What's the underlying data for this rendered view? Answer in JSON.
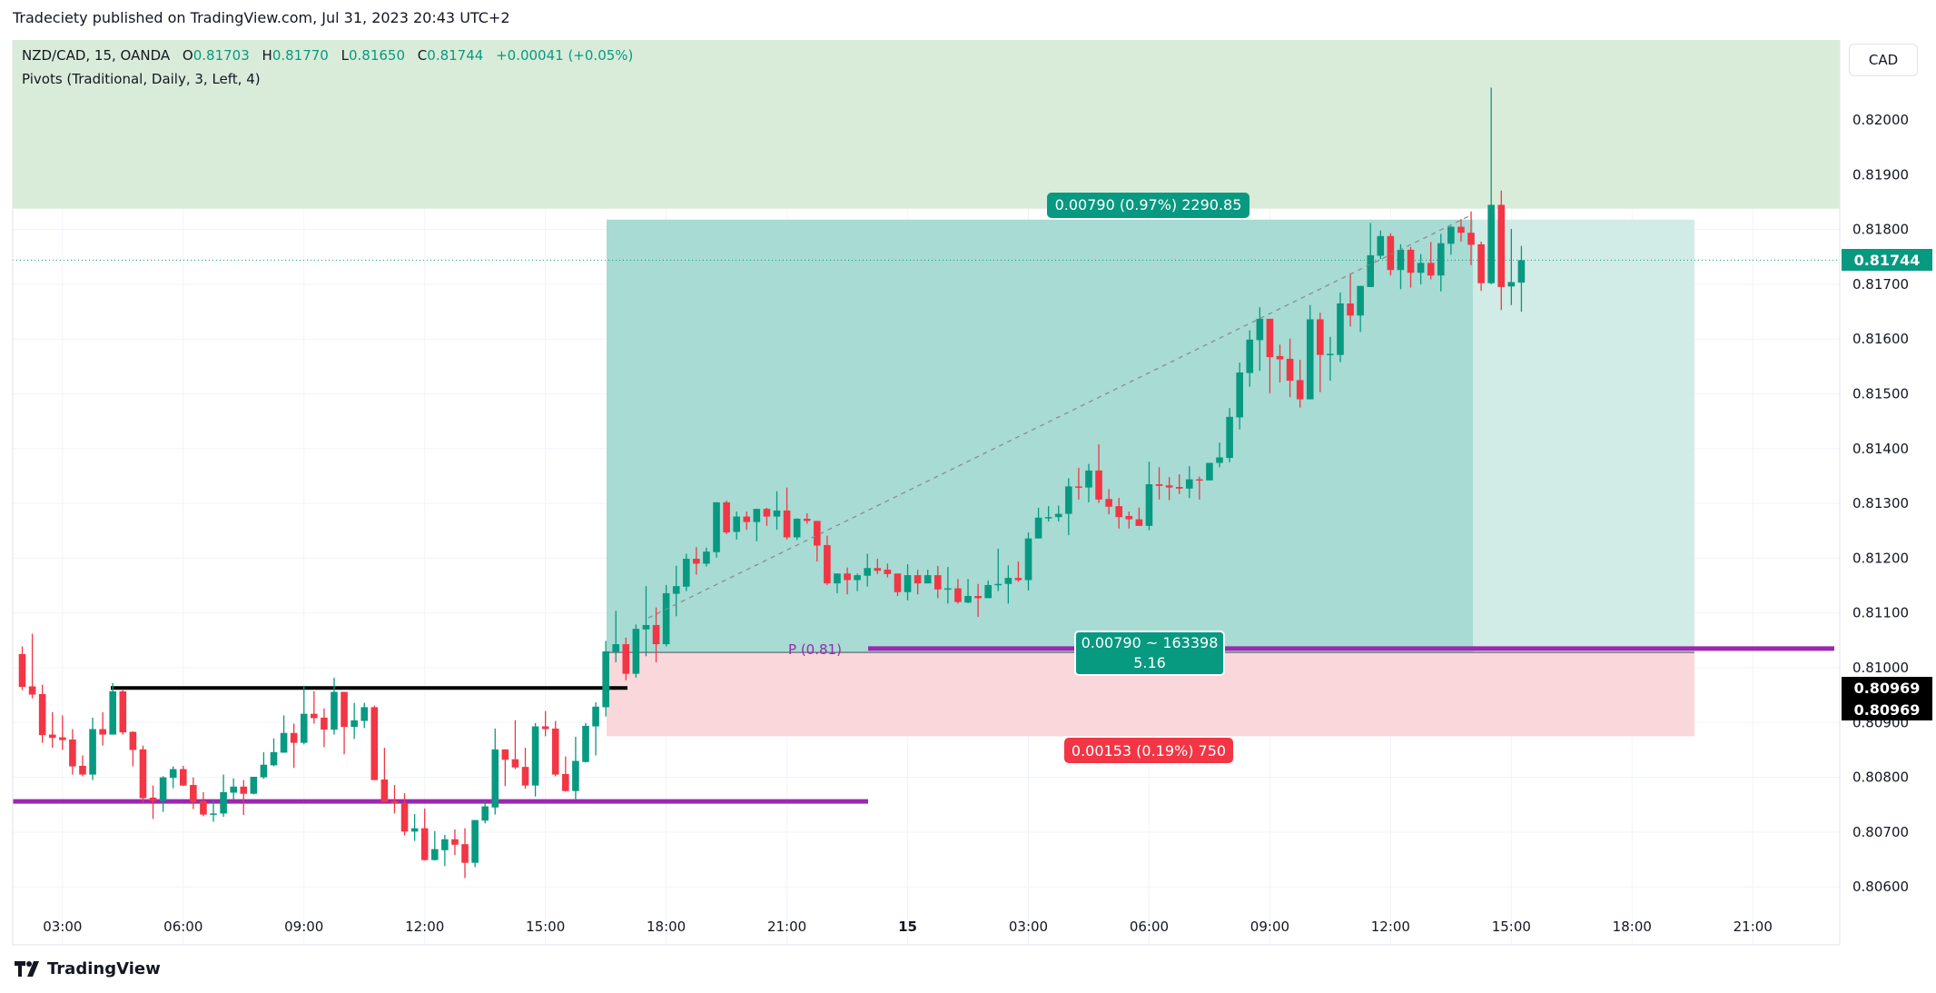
{
  "header": {
    "publisher_text": "Tradeciety published on TradingView.com, Jul 31, 2023 20:43 UTC+2"
  },
  "legend": {
    "symbol": "NZD/CAD, 15, OANDA",
    "open_label": "O",
    "open": "0.81703",
    "high_label": "H",
    "high": "0.81770",
    "low_label": "L",
    "low": "0.81650",
    "close_label": "C",
    "close": "0.81744",
    "change": "+0.00041 (+0.05%)",
    "indicator": "Pivots (Traditional, Daily, 3, Left, 4)"
  },
  "price_axis": {
    "currency": "CAD",
    "ticks": [
      "0.82000",
      "0.81900",
      "0.81800",
      "0.81700",
      "0.81600",
      "0.81500",
      "0.81400",
      "0.81300",
      "0.81200",
      "0.81100",
      "0.81000",
      "0.80900",
      "0.80800",
      "0.80700",
      "0.80600"
    ],
    "current_price_label": "0.81744",
    "crosshair_labels": [
      "0.80969",
      "0.80969"
    ]
  },
  "time_axis": {
    "ticks": [
      "03:00",
      "06:00",
      "09:00",
      "12:00",
      "15:00",
      "18:00",
      "21:00",
      "15",
      "03:00",
      "06:00",
      "09:00",
      "12:00",
      "15:00",
      "18:00",
      "21:00"
    ]
  },
  "position_tool": {
    "type": "long",
    "target_label": "0.00790 (0.97%) 2290.85",
    "center_label_line1": "0.00790 ~ 163398",
    "center_label_line2": "5.16",
    "stop_label": "0.00153 (0.19%) 750",
    "entry": 0.81028,
    "target": 0.81818,
    "stop": 0.80875
  },
  "pivots": {
    "label": "P (0.81)",
    "current_p": 0.81035,
    "previous_p": 0.80756
  },
  "levels": {
    "resistance_line": 0.80963,
    "supply_zone_bottom": 0.81838
  },
  "colors": {
    "up": "#089981",
    "down": "#f23645",
    "pivot": "#9c27b0",
    "zone": "#d9ecd9",
    "profit": "#a7dbd3",
    "profit_light": "#d1ebe6",
    "loss": "#fad7da"
  },
  "footer": {
    "brand": "TradingView"
  },
  "chart_data": {
    "type": "candlestick",
    "interval": "15",
    "first_bar_time": "02:00",
    "ohlc": [
      [
        0.81025,
        0.81039,
        0.80959,
        0.80965
      ],
      [
        0.80966,
        0.81062,
        0.80944,
        0.80951
      ],
      [
        0.80952,
        0.80969,
        0.80863,
        0.80877
      ],
      [
        0.80878,
        0.80919,
        0.80854,
        0.80872
      ],
      [
        0.80873,
        0.80913,
        0.8085,
        0.80868
      ],
      [
        0.80869,
        0.80888,
        0.80805,
        0.8082
      ],
      [
        0.80821,
        0.8084,
        0.80802,
        0.80805
      ],
      [
        0.80805,
        0.80909,
        0.80795,
        0.80888
      ],
      [
        0.80888,
        0.80919,
        0.80858,
        0.80878
      ],
      [
        0.80878,
        0.80972,
        0.80878,
        0.80957
      ],
      [
        0.80957,
        0.80961,
        0.80878,
        0.80882
      ],
      [
        0.80883,
        0.80884,
        0.8082,
        0.8085
      ],
      [
        0.80851,
        0.80858,
        0.80754,
        0.80762
      ],
      [
        0.80763,
        0.80785,
        0.80724,
        0.80757
      ],
      [
        0.80757,
        0.80802,
        0.80737,
        0.808
      ],
      [
        0.80799,
        0.8082,
        0.8078,
        0.80815
      ],
      [
        0.80815,
        0.80821,
        0.80784,
        0.80785
      ],
      [
        0.80786,
        0.808,
        0.80742,
        0.80755
      ],
      [
        0.80757,
        0.80773,
        0.80729,
        0.80732
      ],
      [
        0.80732,
        0.80758,
        0.80719,
        0.80734
      ],
      [
        0.80734,
        0.80805,
        0.80728,
        0.80773
      ],
      [
        0.80772,
        0.80798,
        0.8076,
        0.80783
      ],
      [
        0.80783,
        0.80795,
        0.80731,
        0.8077
      ],
      [
        0.8077,
        0.80801,
        0.80769,
        0.80801
      ],
      [
        0.808,
        0.80846,
        0.80797,
        0.80823
      ],
      [
        0.80822,
        0.80871,
        0.8082,
        0.80846
      ],
      [
        0.80845,
        0.80913,
        0.80845,
        0.80881
      ],
      [
        0.80881,
        0.80898,
        0.80817,
        0.80863
      ],
      [
        0.80863,
        0.80967,
        0.8086,
        0.80916
      ],
      [
        0.80916,
        0.80957,
        0.80898,
        0.80908
      ],
      [
        0.80909,
        0.80926,
        0.80855,
        0.80887
      ],
      [
        0.80887,
        0.80982,
        0.80878,
        0.80956
      ],
      [
        0.80956,
        0.80956,
        0.80842,
        0.80892
      ],
      [
        0.80892,
        0.80936,
        0.8087,
        0.80904
      ],
      [
        0.80903,
        0.80936,
        0.8089,
        0.80928
      ],
      [
        0.80928,
        0.80931,
        0.80795,
        0.80795
      ],
      [
        0.80796,
        0.80854,
        0.80754,
        0.80755
      ],
      [
        0.80757,
        0.80786,
        0.80734,
        0.80752
      ],
      [
        0.80753,
        0.80771,
        0.80694,
        0.80701
      ],
      [
        0.80701,
        0.80733,
        0.80684,
        0.80707
      ],
      [
        0.80707,
        0.80743,
        0.80648,
        0.80649
      ],
      [
        0.80649,
        0.80702,
        0.80648,
        0.80669
      ],
      [
        0.80667,
        0.80695,
        0.80638,
        0.80687
      ],
      [
        0.80687,
        0.80705,
        0.80658,
        0.80677
      ],
      [
        0.80678,
        0.80707,
        0.80616,
        0.80644
      ],
      [
        0.80644,
        0.80722,
        0.80636,
        0.80722
      ],
      [
        0.80721,
        0.80757,
        0.80716,
        0.80747
      ],
      [
        0.80745,
        0.80889,
        0.80732,
        0.80851
      ],
      [
        0.80851,
        0.80851,
        0.80784,
        0.80832
      ],
      [
        0.80833,
        0.80904,
        0.80815,
        0.80818
      ],
      [
        0.80819,
        0.80854,
        0.80779,
        0.80785
      ],
      [
        0.80785,
        0.80899,
        0.80765,
        0.80893
      ],
      [
        0.80893,
        0.80921,
        0.80875,
        0.80888
      ],
      [
        0.80889,
        0.80903,
        0.80802,
        0.80805
      ],
      [
        0.80806,
        0.80838,
        0.80774,
        0.80775
      ],
      [
        0.80775,
        0.80874,
        0.8076,
        0.8083
      ],
      [
        0.80828,
        0.80899,
        0.80827,
        0.80894
      ],
      [
        0.80893,
        0.80937,
        0.8084,
        0.80929
      ],
      [
        0.80928,
        0.81049,
        0.80911,
        0.8103
      ],
      [
        0.81029,
        0.81104,
        0.8101,
        0.81043
      ],
      [
        0.81043,
        0.81055,
        0.80977,
        0.80989
      ],
      [
        0.80989,
        0.81079,
        0.80982,
        0.81071
      ],
      [
        0.8107,
        0.81149,
        0.81021,
        0.81078
      ],
      [
        0.81078,
        0.8111,
        0.8101,
        0.81043
      ],
      [
        0.81043,
        0.81151,
        0.81039,
        0.81136
      ],
      [
        0.81135,
        0.81186,
        0.81094,
        0.81149
      ],
      [
        0.81148,
        0.81208,
        0.8114,
        0.81199
      ],
      [
        0.81199,
        0.8122,
        0.8117,
        0.8119
      ],
      [
        0.8119,
        0.81219,
        0.81185,
        0.81212
      ],
      [
        0.81211,
        0.81302,
        0.81201,
        0.81302
      ],
      [
        0.81302,
        0.81305,
        0.81244,
        0.81247
      ],
      [
        0.81248,
        0.81285,
        0.81234,
        0.81276
      ],
      [
        0.81276,
        0.81285,
        0.81252,
        0.81266
      ],
      [
        0.81266,
        0.8129,
        0.81231,
        0.8129
      ],
      [
        0.8129,
        0.81292,
        0.81259,
        0.81276
      ],
      [
        0.81276,
        0.81322,
        0.81252,
        0.81287
      ],
      [
        0.81287,
        0.81329,
        0.81234,
        0.81238
      ],
      [
        0.81238,
        0.81273,
        0.81233,
        0.81272
      ],
      [
        0.81272,
        0.81282,
        0.81263,
        0.81268
      ],
      [
        0.81268,
        0.81268,
        0.81194,
        0.81223
      ],
      [
        0.81224,
        0.81241,
        0.81151,
        0.81154
      ],
      [
        0.81154,
        0.81172,
        0.81136,
        0.81172
      ],
      [
        0.81172,
        0.81183,
        0.81134,
        0.8116
      ],
      [
        0.8116,
        0.81172,
        0.8114,
        0.81169
      ],
      [
        0.81168,
        0.81208,
        0.81148,
        0.81182
      ],
      [
        0.81182,
        0.81199,
        0.81171,
        0.81177
      ],
      [
        0.81179,
        0.8119,
        0.81165,
        0.81171
      ],
      [
        0.81172,
        0.81172,
        0.81131,
        0.81138
      ],
      [
        0.81138,
        0.81189,
        0.81123,
        0.81169
      ],
      [
        0.81169,
        0.81179,
        0.81134,
        0.81154
      ],
      [
        0.81154,
        0.81179,
        0.81154,
        0.81169
      ],
      [
        0.81169,
        0.81186,
        0.81127,
        0.81143
      ],
      [
        0.81143,
        0.81184,
        0.81117,
        0.81145
      ],
      [
        0.81145,
        0.81162,
        0.81117,
        0.8112
      ],
      [
        0.81119,
        0.81162,
        0.81118,
        0.81131
      ],
      [
        0.81131,
        0.81153,
        0.81093,
        0.81127
      ],
      [
        0.81127,
        0.81159,
        0.81127,
        0.81151
      ],
      [
        0.81151,
        0.81217,
        0.8114,
        0.81153
      ],
      [
        0.81153,
        0.81187,
        0.81117,
        0.81164
      ],
      [
        0.81164,
        0.81194,
        0.81157,
        0.8116
      ],
      [
        0.8116,
        0.81247,
        0.81141,
        0.81236
      ],
      [
        0.81236,
        0.81292,
        0.81236,
        0.81274
      ],
      [
        0.81274,
        0.81295,
        0.81267,
        0.81275
      ],
      [
        0.81275,
        0.81296,
        0.81267,
        0.81281
      ],
      [
        0.81281,
        0.81346,
        0.81242,
        0.81331
      ],
      [
        0.81331,
        0.81365,
        0.81307,
        0.81329
      ],
      [
        0.81329,
        0.81372,
        0.81302,
        0.8136
      ],
      [
        0.8136,
        0.81408,
        0.81301,
        0.81307
      ],
      [
        0.81308,
        0.81326,
        0.8128,
        0.81294
      ],
      [
        0.81295,
        0.8131,
        0.81254,
        0.81275
      ],
      [
        0.81277,
        0.81285,
        0.81254,
        0.81271
      ],
      [
        0.81271,
        0.81292,
        0.81259,
        0.81259
      ],
      [
        0.81259,
        0.81376,
        0.81251,
        0.81335
      ],
      [
        0.81335,
        0.81366,
        0.81307,
        0.81332
      ],
      [
        0.81333,
        0.81348,
        0.81306,
        0.81329
      ],
      [
        0.8133,
        0.81353,
        0.81317,
        0.81327
      ],
      [
        0.81327,
        0.81368,
        0.8131,
        0.81344
      ],
      [
        0.81344,
        0.81349,
        0.81307,
        0.81342
      ],
      [
        0.81342,
        0.81374,
        0.81342,
        0.81374
      ],
      [
        0.81374,
        0.81411,
        0.81366,
        0.81384
      ],
      [
        0.81383,
        0.81474,
        0.81375,
        0.81458
      ],
      [
        0.81457,
        0.81557,
        0.81435,
        0.81539
      ],
      [
        0.81538,
        0.81616,
        0.81513,
        0.81599
      ],
      [
        0.81598,
        0.81658,
        0.81542,
        0.81637
      ],
      [
        0.81637,
        0.81637,
        0.81501,
        0.81567
      ],
      [
        0.81569,
        0.8159,
        0.81521,
        0.81563
      ],
      [
        0.81564,
        0.81601,
        0.81494,
        0.81524
      ],
      [
        0.81525,
        0.81562,
        0.81475,
        0.8149
      ],
      [
        0.8149,
        0.81662,
        0.8149,
        0.81636
      ],
      [
        0.81636,
        0.81648,
        0.81503,
        0.81571
      ],
      [
        0.81571,
        0.81604,
        0.81524,
        0.81573
      ],
      [
        0.81571,
        0.81685,
        0.81558,
        0.81665
      ],
      [
        0.81665,
        0.8172,
        0.81623,
        0.81643
      ],
      [
        0.81643,
        0.81697,
        0.81613,
        0.81697
      ],
      [
        0.81695,
        0.81812,
        0.81695,
        0.81753
      ],
      [
        0.81752,
        0.81798,
        0.81746,
        0.81788
      ],
      [
        0.81788,
        0.81793,
        0.81716,
        0.81726
      ],
      [
        0.81726,
        0.81773,
        0.81691,
        0.81763
      ],
      [
        0.81763,
        0.81768,
        0.81694,
        0.81721
      ],
      [
        0.81721,
        0.81755,
        0.817,
        0.81739
      ],
      [
        0.81739,
        0.81777,
        0.81709,
        0.81716
      ],
      [
        0.81716,
        0.81792,
        0.81687,
        0.81775
      ],
      [
        0.81774,
        0.81806,
        0.81754,
        0.81805
      ],
      [
        0.81805,
        0.81819,
        0.81778,
        0.81794
      ],
      [
        0.81794,
        0.81833,
        0.81735,
        0.81772
      ],
      [
        0.81773,
        0.81778,
        0.81688,
        0.81702
      ],
      [
        0.81702,
        0.82059,
        0.817,
        0.81845
      ],
      [
        0.81845,
        0.81871,
        0.81653,
        0.81695
      ],
      [
        0.81696,
        0.81801,
        0.81662,
        0.81704
      ],
      [
        0.81703,
        0.8177,
        0.8165,
        0.81744
      ]
    ],
    "ylim": [
      0.8056,
      0.8215
    ],
    "grid": true
  }
}
